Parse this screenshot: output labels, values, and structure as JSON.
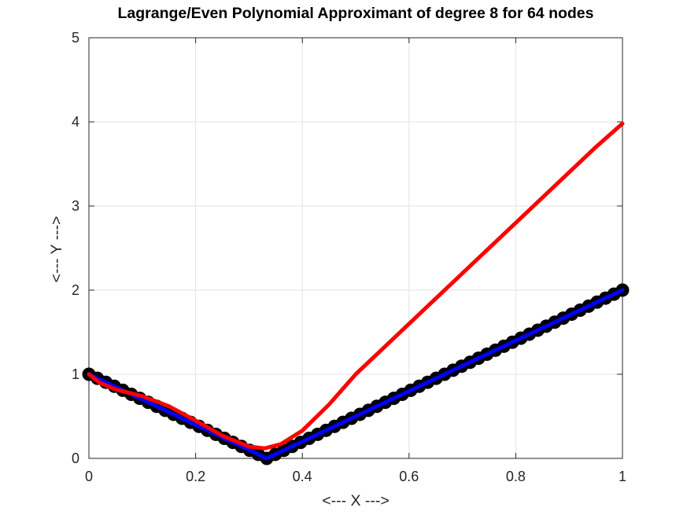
{
  "chart_data": {
    "type": "line",
    "title": "Lagrange/Even Polynomial Approximant of degree 8 for 64 nodes",
    "xlabel": "<--- X --->",
    "ylabel": "<--- Y --->",
    "xlim": [
      0,
      1
    ],
    "ylim": [
      0,
      5
    ],
    "xticks": [
      0,
      0.2,
      0.4,
      0.6,
      0.8,
      1
    ],
    "xtick_labels": [
      "0",
      "0.2",
      "0.4",
      "0.6",
      "0.8",
      "1"
    ],
    "yticks": [
      0,
      1,
      2,
      3,
      4,
      5
    ],
    "ytick_labels": [
      "0",
      "1",
      "2",
      "3",
      "4",
      "5"
    ],
    "grid": true,
    "series": [
      {
        "role": "nodes",
        "style": "markers",
        "color": "#000000",
        "function": "|3x - 1|",
        "node_count": 64,
        "x_range": [
          0,
          1
        ]
      },
      {
        "role": "exact",
        "style": "line",
        "color": "#0000ff",
        "x": [
          0,
          0.1,
          0.2,
          0.333,
          0.4,
          0.6,
          0.8,
          1
        ],
        "y": [
          1,
          0.7,
          0.4,
          0,
          0.2,
          0.8,
          1.4,
          2.0
        ],
        "y_actual": [
          1,
          0.7,
          0.4,
          0,
          0.2,
          0.8,
          1.4,
          2.0
        ]
      },
      {
        "role": "approximant",
        "style": "line",
        "color": "#ff0000",
        "x": [
          0,
          0.02,
          0.05,
          0.1,
          0.15,
          0.2,
          0.25,
          0.3,
          0.33,
          0.36,
          0.4,
          0.45,
          0.5,
          0.6,
          0.7,
          0.8,
          0.9,
          0.95,
          1
        ],
        "y": [
          1.0,
          0.9,
          0.82,
          0.74,
          0.62,
          0.45,
          0.27,
          0.14,
          0.12,
          0.17,
          0.33,
          0.64,
          1.0,
          1.6,
          2.2,
          2.8,
          3.4,
          3.7,
          3.98
        ]
      }
    ]
  }
}
